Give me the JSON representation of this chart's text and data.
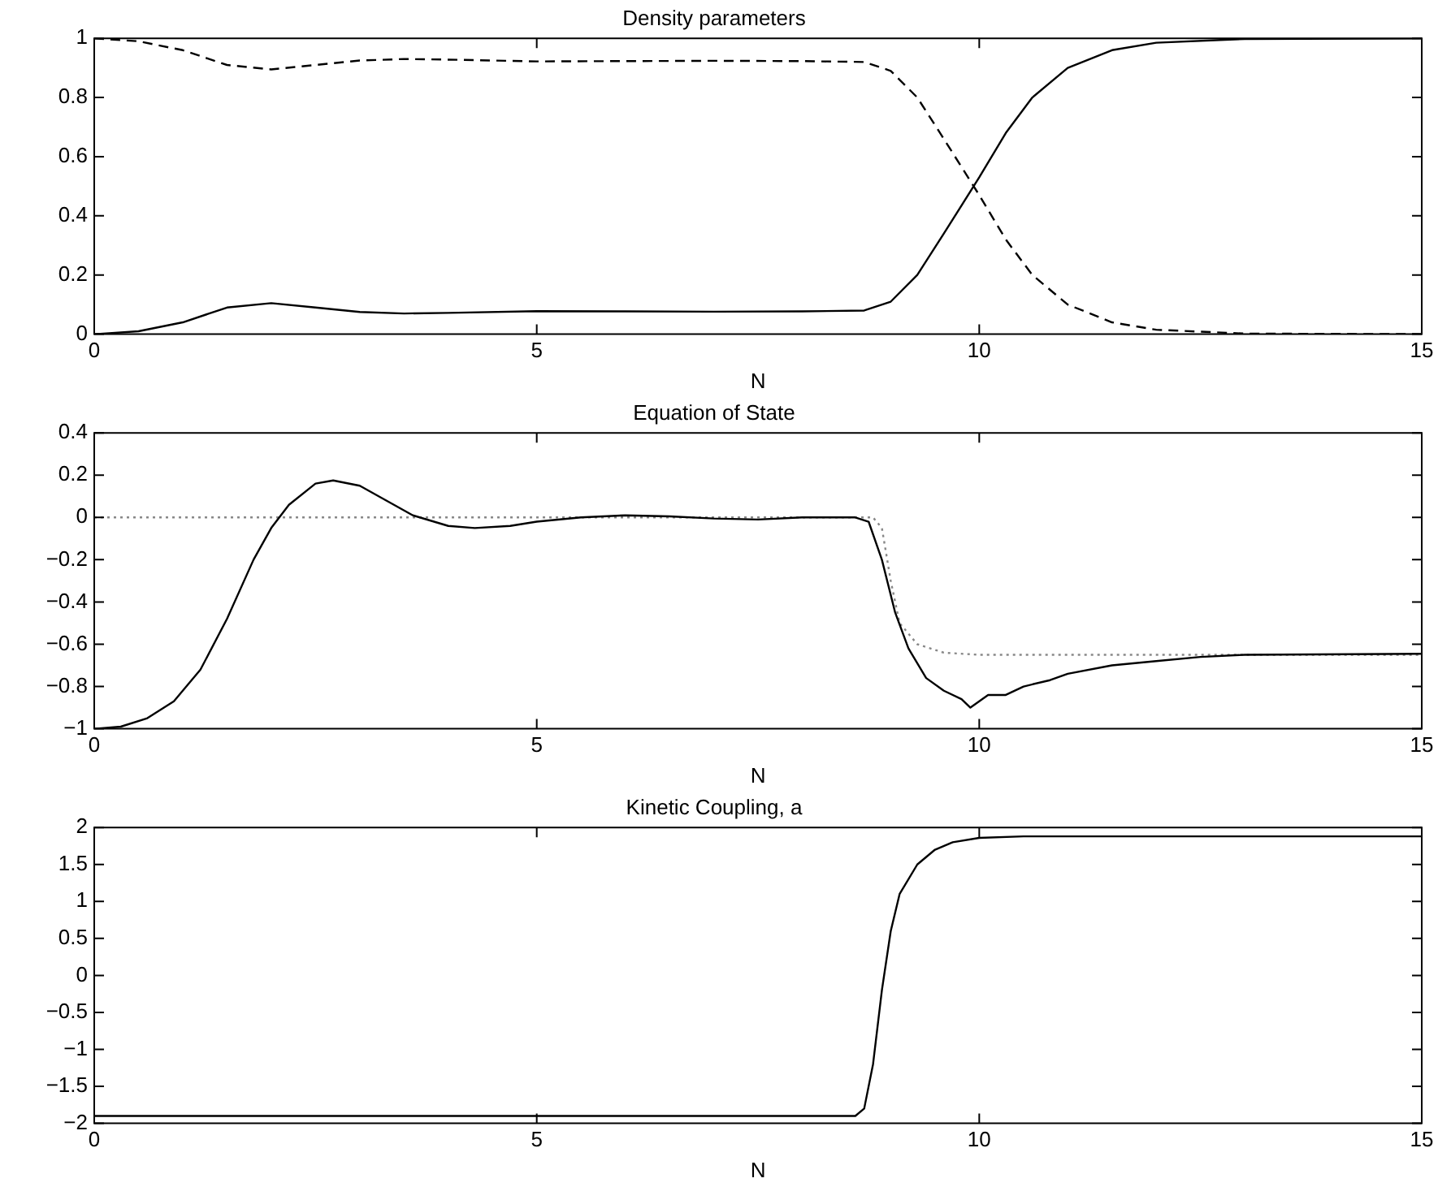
{
  "chart_data": [
    {
      "type": "line",
      "title": "Density parameters",
      "xlabel": "N",
      "xlim": [
        0,
        15
      ],
      "xticks": [
        0,
        5,
        10,
        15
      ],
      "ylim": [
        0,
        1
      ],
      "yticks": [
        0,
        0.2,
        0.4,
        0.6,
        0.8,
        1
      ],
      "grid": false,
      "legend": false,
      "marker": "none",
      "series": [
        {
          "color": "#000000",
          "line_style": "solid",
          "x": [
            0,
            0.5,
            1,
            1.5,
            2,
            2.5,
            3,
            3.5,
            4,
            5,
            6,
            7,
            8,
            8.7,
            9,
            9.3,
            9.6,
            10,
            10.3,
            10.6,
            11,
            11.5,
            12,
            13,
            15
          ],
          "values": [
            0,
            0.01,
            0.04,
            0.09,
            0.105,
            0.09,
            0.075,
            0.07,
            0.072,
            0.078,
            0.077,
            0.076,
            0.077,
            0.08,
            0.11,
            0.2,
            0.34,
            0.53,
            0.68,
            0.8,
            0.9,
            0.96,
            0.985,
            0.998,
            1
          ]
        },
        {
          "color": "#000000",
          "line_style": "dashed",
          "x": [
            0,
            0.5,
            1,
            1.5,
            2,
            2.5,
            3,
            3.5,
            4,
            5,
            6,
            7,
            8,
            8.7,
            9,
            9.3,
            9.6,
            10,
            10.3,
            10.6,
            11,
            11.5,
            12,
            13,
            15
          ],
          "values": [
            1,
            0.99,
            0.96,
            0.91,
            0.895,
            0.91,
            0.925,
            0.93,
            0.928,
            0.922,
            0.923,
            0.924,
            0.923,
            0.92,
            0.89,
            0.8,
            0.66,
            0.47,
            0.32,
            0.2,
            0.1,
            0.04,
            0.015,
            0.002,
            0
          ]
        }
      ]
    },
    {
      "type": "line",
      "title": "Equation of State",
      "xlabel": "N",
      "xlim": [
        0,
        15
      ],
      "xticks": [
        0,
        5,
        10,
        15
      ],
      "ylim": [
        -1,
        0.4
      ],
      "yticks": [
        {
          "value": -1,
          "label": "−1"
        },
        {
          "value": -0.8,
          "label": "−0.8"
        },
        {
          "value": -0.6,
          "label": "−0.6"
        },
        {
          "value": -0.4,
          "label": "−0.4"
        },
        {
          "value": -0.2,
          "label": "−0.2"
        },
        0,
        0.2,
        0.4
      ],
      "grid": false,
      "legend": false,
      "marker": "none",
      "series": [
        {
          "color": "#000000",
          "line_style": "solid",
          "x": [
            0,
            0.3,
            0.6,
            0.9,
            1.2,
            1.5,
            1.8,
            2,
            2.2,
            2.5,
            2.7,
            3,
            3.3,
            3.6,
            4,
            4.3,
            4.7,
            5,
            5.5,
            6,
            6.5,
            7,
            7.5,
            8,
            8.6,
            8.75,
            8.9,
            9.05,
            9.2,
            9.4,
            9.6,
            9.8,
            9.9,
            10,
            10.1,
            10.3,
            10.5,
            10.8,
            11,
            11.5,
            12,
            12.5,
            13,
            15
          ],
          "values": [
            -1,
            -0.99,
            -0.95,
            -0.87,
            -0.72,
            -0.48,
            -0.2,
            -0.05,
            0.06,
            0.16,
            0.175,
            0.15,
            0.08,
            0.01,
            -0.04,
            -0.05,
            -0.04,
            -0.02,
            0,
            0.01,
            0.005,
            -0.005,
            -0.01,
            0,
            0,
            -0.02,
            -0.2,
            -0.45,
            -0.62,
            -0.76,
            -0.82,
            -0.86,
            -0.9,
            -0.87,
            -0.84,
            -0.84,
            -0.8,
            -0.77,
            -0.74,
            -0.7,
            -0.68,
            -0.66,
            -0.65,
            -0.645
          ]
        },
        {
          "color": "#888888",
          "line_style": "dotted",
          "x": [
            0,
            8.8,
            8.9,
            9,
            9.1,
            9.3,
            9.6,
            10,
            15
          ],
          "values": [
            0,
            0,
            -0.05,
            -0.3,
            -0.5,
            -0.6,
            -0.64,
            -0.65,
            -0.65
          ]
        }
      ]
    },
    {
      "type": "line",
      "title": "Kinetic Coupling, a",
      "xlabel": "N",
      "xlim": [
        0,
        15
      ],
      "xticks": [
        0,
        5,
        10,
        15
      ],
      "ylim": [
        -2,
        2
      ],
      "yticks": [
        {
          "value": -2,
          "label": "−2"
        },
        {
          "value": -1.5,
          "label": "−1.5"
        },
        {
          "value": -1,
          "label": "−1"
        },
        {
          "value": -0.5,
          "label": "−0.5"
        },
        0,
        0.5,
        1,
        1.5,
        2
      ],
      "grid": false,
      "legend": false,
      "marker": "none",
      "series": [
        {
          "color": "#000000",
          "line_style": "solid",
          "x": [
            0,
            8.6,
            8.7,
            8.8,
            8.9,
            9,
            9.1,
            9.3,
            9.5,
            9.7,
            10,
            10.5,
            15
          ],
          "values": [
            -1.9,
            -1.9,
            -1.8,
            -1.2,
            -0.2,
            0.6,
            1.1,
            1.5,
            1.7,
            1.8,
            1.86,
            1.88,
            1.88
          ]
        }
      ]
    }
  ]
}
